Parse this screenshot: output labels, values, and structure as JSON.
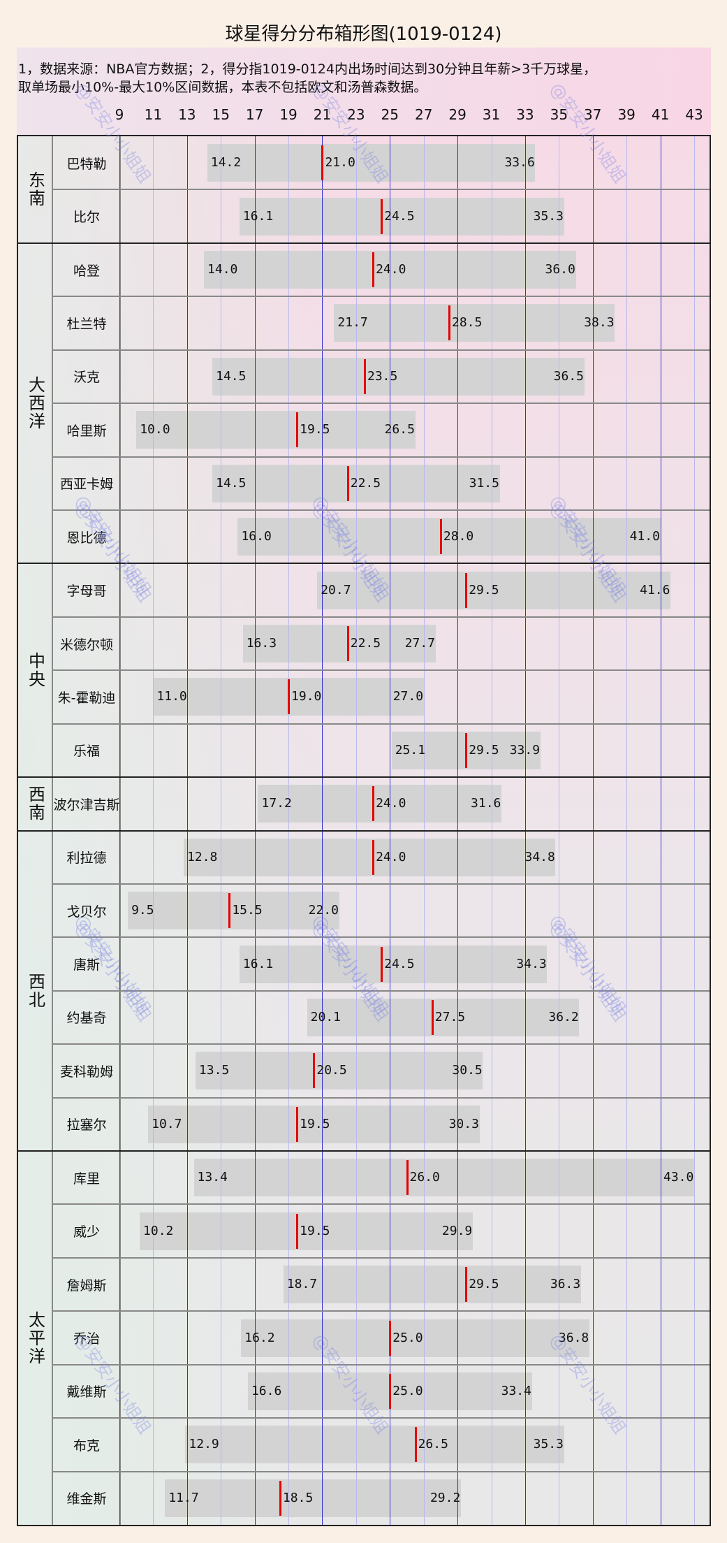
{
  "chart_data": {
    "type": "box",
    "title": "球星得分分布箱形图(1019-0124)",
    "note": "1，数据来源：NBA官方数据；2，得分指1019-0124内出场时间达到30分钟且年薪>3千万球星，\n取单场最小10%-最大10%区间数据，本表不包括欧文和汤普森数据。",
    "xticks": [
      9,
      11,
      13,
      15,
      17,
      19,
      21,
      23,
      25,
      27,
      29,
      31,
      33,
      35,
      37,
      39,
      41,
      43
    ],
    "xlim": [
      9,
      43
    ],
    "grid": true,
    "colors": {
      "bar": "#d3d3d3",
      "median": "#e60000",
      "grid_major": "#3030d0",
      "grid_minor": "#b8b8ec"
    },
    "watermark": "@安安小小姐姐",
    "groups": [
      {
        "region": "东南",
        "players": [
          {
            "name": "巴特勒",
            "min": 14.2,
            "median": 21.0,
            "max": 33.6
          },
          {
            "name": "比尔",
            "min": 16.1,
            "median": 24.5,
            "max": 35.3
          }
        ]
      },
      {
        "region": "大西洋",
        "players": [
          {
            "name": "哈登",
            "min": 14.0,
            "median": 24.0,
            "max": 36.0
          },
          {
            "name": "杜兰特",
            "min": 21.7,
            "median": 28.5,
            "max": 38.3
          },
          {
            "name": "沃克",
            "min": 14.5,
            "median": 23.5,
            "max": 36.5
          },
          {
            "name": "哈里斯",
            "min": 10.0,
            "median": 19.5,
            "max": 26.5
          },
          {
            "name": "西亚卡姆",
            "min": 14.5,
            "median": 22.5,
            "max": 31.5
          },
          {
            "name": "恩比德",
            "min": 16.0,
            "median": 28.0,
            "max": 41.0
          }
        ]
      },
      {
        "region": "中央",
        "players": [
          {
            "name": "字母哥",
            "min": 20.7,
            "median": 29.5,
            "max": 41.6
          },
          {
            "name": "米德尔顿",
            "min": 16.3,
            "median": 22.5,
            "max": 27.7
          },
          {
            "name": "朱-霍勒迪",
            "min": 11.0,
            "median": 19.0,
            "max": 27.0
          },
          {
            "name": "乐福",
            "min": 25.1,
            "median": 29.5,
            "max": 33.9
          }
        ]
      },
      {
        "region": "西南",
        "players": [
          {
            "name": "波尔津吉斯",
            "min": 17.2,
            "median": 24.0,
            "max": 31.6
          }
        ]
      },
      {
        "region": "西北",
        "players": [
          {
            "name": "利拉德",
            "min": 12.8,
            "median": 24.0,
            "max": 34.8
          },
          {
            "name": "戈贝尔",
            "min": 9.5,
            "median": 15.5,
            "max": 22.0
          },
          {
            "name": "唐斯",
            "min": 16.1,
            "median": 24.5,
            "max": 34.3
          },
          {
            "name": "约基奇",
            "min": 20.1,
            "median": 27.5,
            "max": 36.2
          },
          {
            "name": "麦科勒姆",
            "min": 13.5,
            "median": 20.5,
            "max": 30.5
          },
          {
            "name": "拉塞尔",
            "min": 10.7,
            "median": 19.5,
            "max": 30.3
          }
        ]
      },
      {
        "region": "太平洋",
        "players": [
          {
            "name": "库里",
            "min": 13.4,
            "median": 26.0,
            "max": 43.0
          },
          {
            "name": "威少",
            "min": 10.2,
            "median": 19.5,
            "max": 29.9
          },
          {
            "name": "詹姆斯",
            "min": 18.7,
            "median": 29.5,
            "max": 36.3
          },
          {
            "name": "乔治",
            "min": 16.2,
            "median": 25.0,
            "max": 36.8
          },
          {
            "name": "戴维斯",
            "min": 16.6,
            "median": 25.0,
            "max": 33.4
          },
          {
            "name": "布克",
            "min": 12.9,
            "median": 26.5,
            "max": 35.3
          },
          {
            "name": "维金斯",
            "min": 11.7,
            "median": 18.5,
            "max": 29.2
          }
        ]
      }
    ]
  }
}
